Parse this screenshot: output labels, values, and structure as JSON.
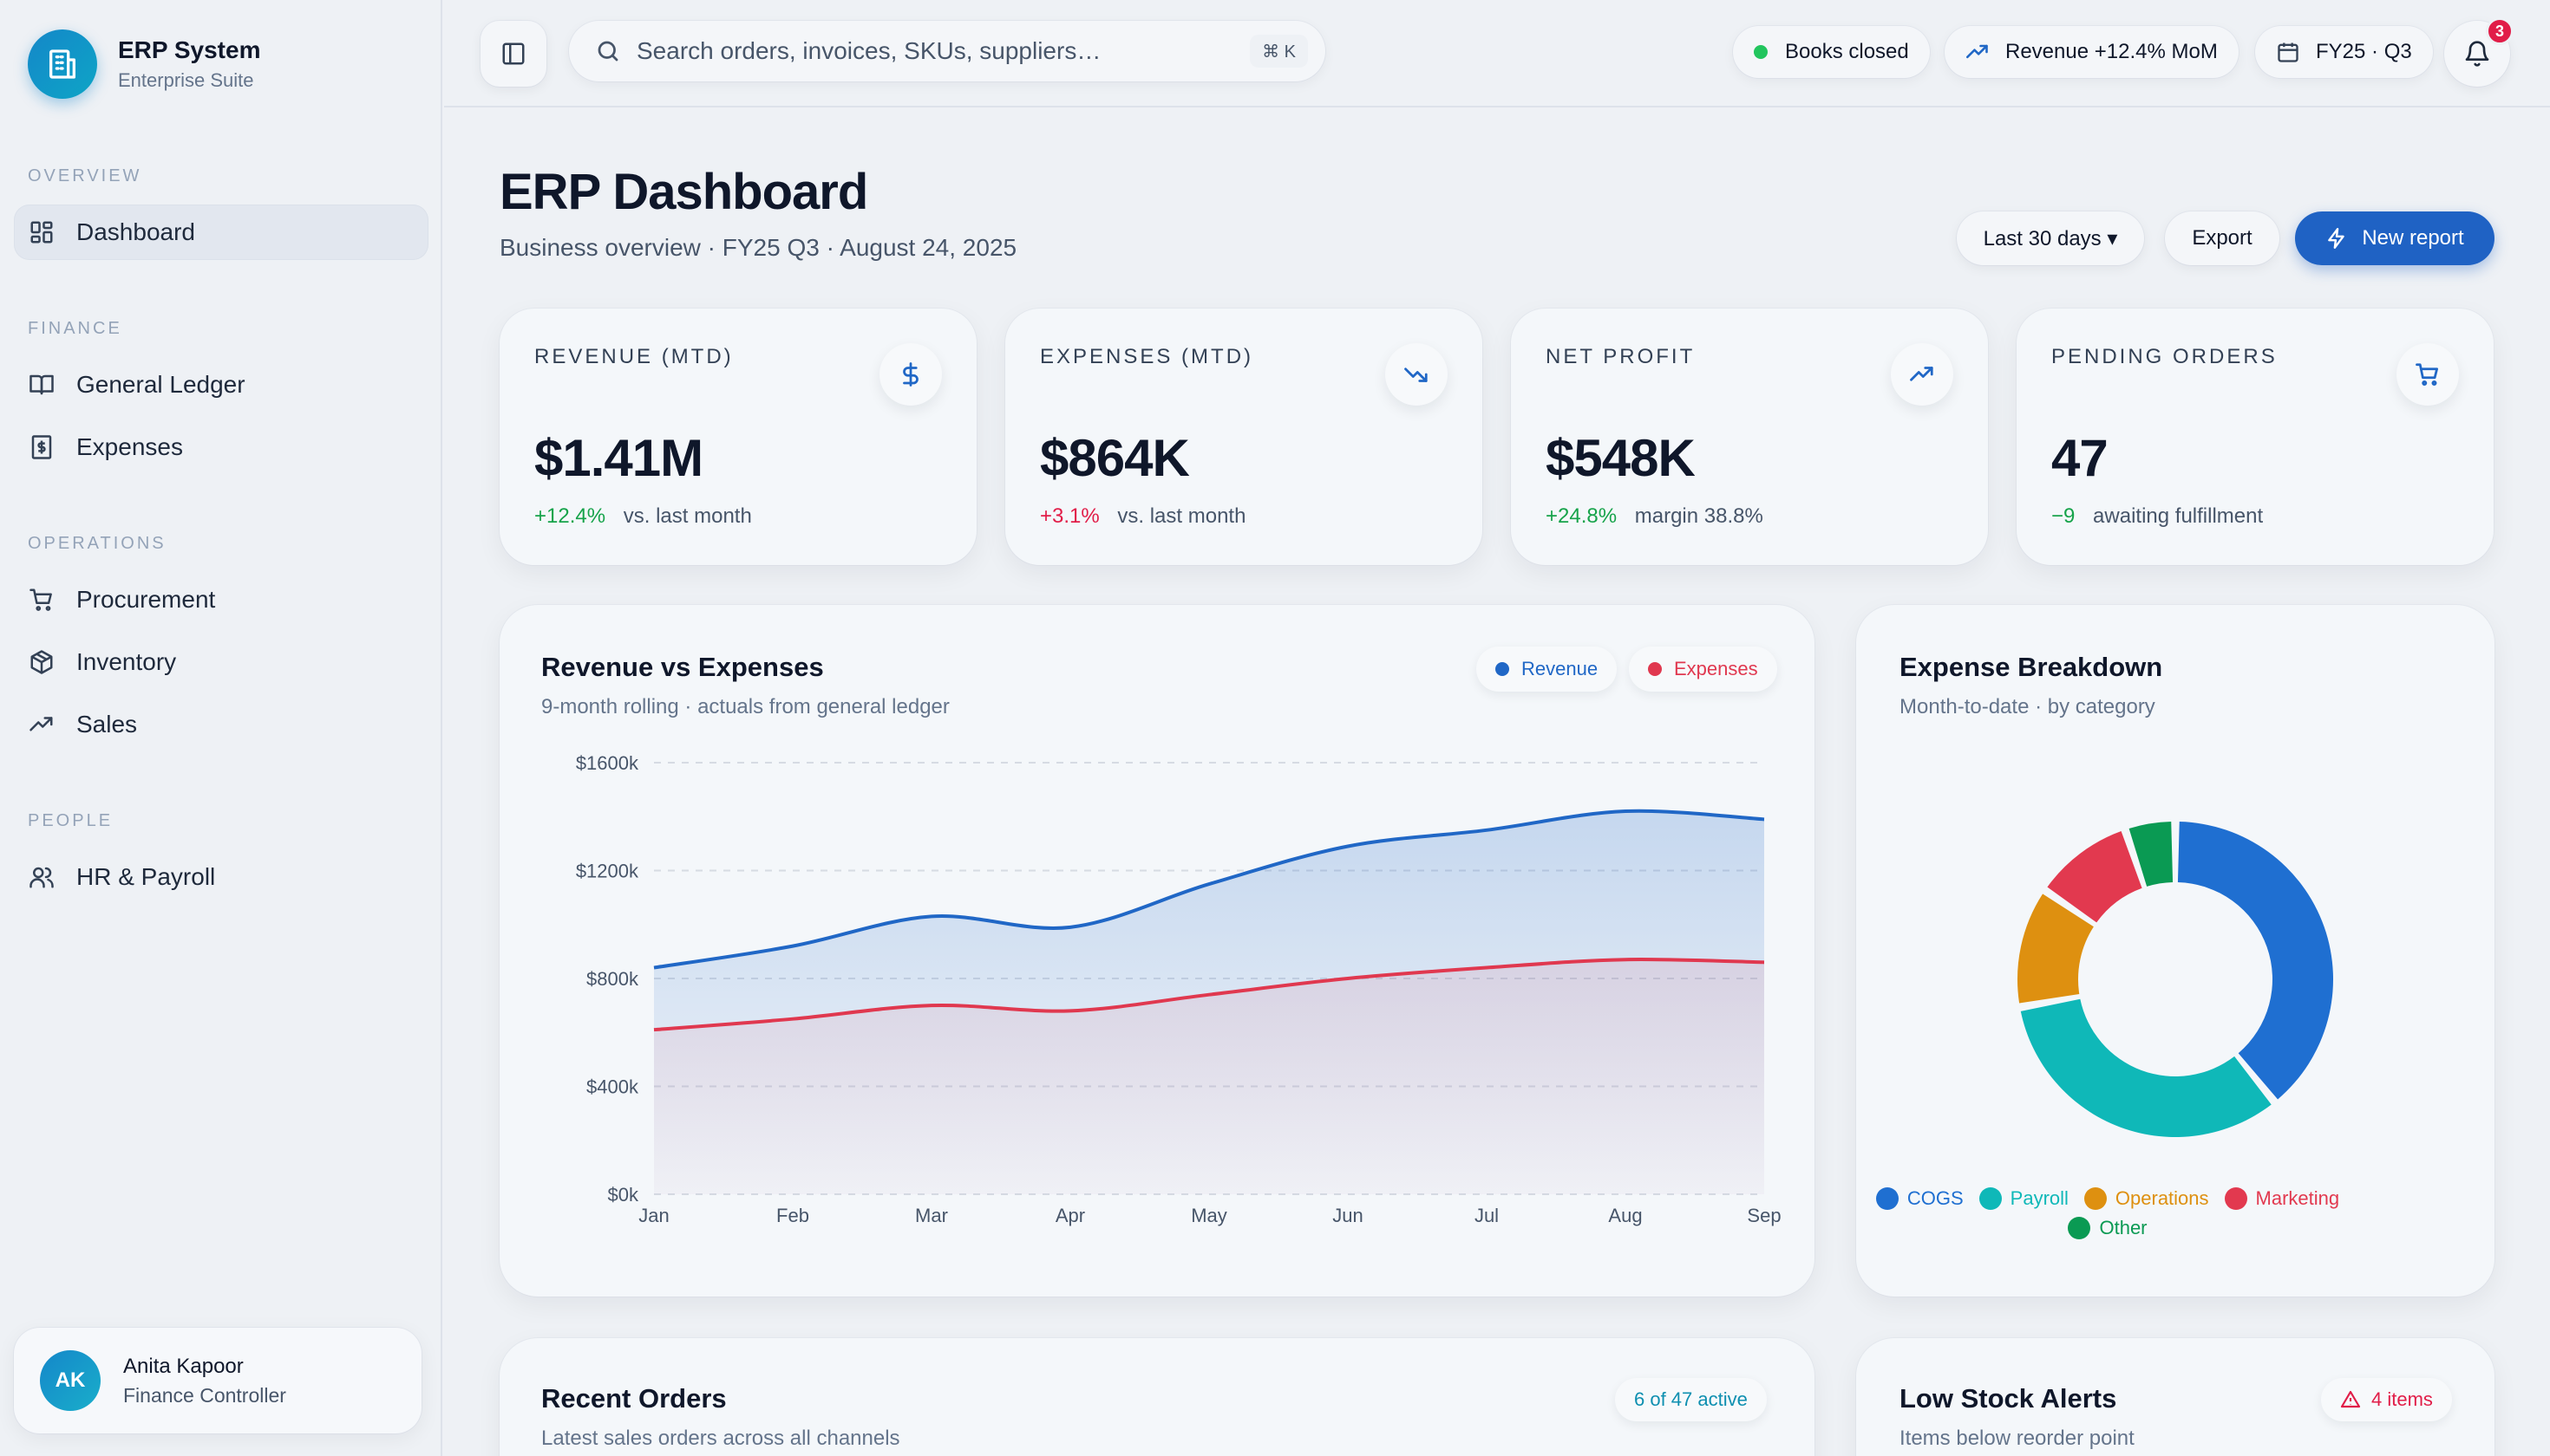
{
  "brand": {
    "title": "ERP System",
    "subtitle": "Enterprise Suite"
  },
  "nav": {
    "sections": [
      {
        "label": "OVERVIEW",
        "items": [
          {
            "label": "Dashboard",
            "icon": "grid-icon",
            "active": true
          }
        ]
      },
      {
        "label": "FINANCE",
        "items": [
          {
            "label": "General Ledger",
            "icon": "book-icon"
          },
          {
            "label": "Expenses",
            "icon": "receipt-icon"
          }
        ]
      },
      {
        "label": "OPERATIONS",
        "items": [
          {
            "label": "Procurement",
            "icon": "cart-icon"
          },
          {
            "label": "Inventory",
            "icon": "package-icon"
          },
          {
            "label": "Sales",
            "icon": "trending-up-icon"
          }
        ]
      },
      {
        "label": "PEOPLE",
        "items": [
          {
            "label": "HR & Payroll",
            "icon": "users-icon"
          }
        ]
      }
    ]
  },
  "user": {
    "initials": "AK",
    "name": "Anita Kapoor",
    "role": "Finance Controller"
  },
  "topbar": {
    "search_placeholder": "Search orders, invoices, SKUs, suppliers…",
    "shortcut": "⌘ K",
    "status": "Books closed",
    "revenue_pill": "Revenue +12.4% MoM",
    "period": "FY25 · Q3",
    "notifications": "3"
  },
  "header": {
    "title": "ERP Dashboard",
    "subtitle": "Business overview · FY25 Q3 · August 24, 2025",
    "range_button": "Last 30 days ▾",
    "export_button": "Export",
    "new_report_button": "New report"
  },
  "kpis": [
    {
      "label": "REVENUE (MTD)",
      "value": "$1.41M",
      "delta": "+12.4%",
      "delta_dir": "up",
      "note": "vs. last month",
      "icon": "dollar-icon"
    },
    {
      "label": "EXPENSES (MTD)",
      "value": "$864K",
      "delta": "+3.1%",
      "delta_dir": "down",
      "note": "vs. last month",
      "icon": "trending-down-icon"
    },
    {
      "label": "NET PROFIT",
      "value": "$548K",
      "delta": "+24.8%",
      "delta_dir": "up",
      "note": "margin 38.8%",
      "icon": "trending-up-icon"
    },
    {
      "label": "PENDING ORDERS",
      "value": "47",
      "delta": "−9",
      "delta_dir": "up",
      "note": "awaiting fulfillment",
      "icon": "cart-icon"
    }
  ],
  "colors": {
    "revenue": "#2067c6",
    "expenses": "#e0384f",
    "accent": "#1f62c4"
  },
  "revenue_chart": {
    "title": "Revenue vs Expenses",
    "subtitle": "9-month rolling · actuals from general ledger",
    "legend": [
      "Revenue",
      "Expenses"
    ]
  },
  "expense_panel": {
    "title": "Expense Breakdown",
    "subtitle": "Month-to-date · by category"
  },
  "orders_panel": {
    "title": "Recent Orders",
    "subtitle": "Latest sales orders across all channels",
    "badge": "6 of 47 active"
  },
  "stock_panel": {
    "title": "Low Stock Alerts",
    "subtitle": "Items below reorder point",
    "badge": "4 items"
  },
  "chart_data": [
    {
      "type": "area",
      "title": "Revenue vs Expenses",
      "categories": [
        "Jan",
        "Feb",
        "Mar",
        "Apr",
        "May",
        "Jun",
        "Jul",
        "Aug",
        "Sep"
      ],
      "y_ticks": [
        "$0k",
        "$400k",
        "$800k",
        "$1200k",
        "$1600k"
      ],
      "ylim": [
        0,
        1600
      ],
      "grid": true,
      "legend": "top-right",
      "series": [
        {
          "name": "Revenue",
          "color": "#2067c6",
          "values": [
            840,
            920,
            1030,
            990,
            1150,
            1290,
            1350,
            1420,
            1390
          ]
        },
        {
          "name": "Expenses",
          "color": "#e0384f",
          "values": [
            610,
            650,
            700,
            680,
            740,
            800,
            840,
            870,
            860
          ]
        }
      ]
    },
    {
      "type": "pie",
      "title": "Expense Breakdown",
      "categories": [
        "COGS",
        "Payroll",
        "Operations",
        "Marketing",
        "Other"
      ],
      "values": [
        38,
        32,
        12,
        10,
        5
      ],
      "colors": [
        "#1f6fd1",
        "#0fb8b8",
        "#de9010",
        "#e2394f",
        "#0a9a53"
      ]
    }
  ]
}
